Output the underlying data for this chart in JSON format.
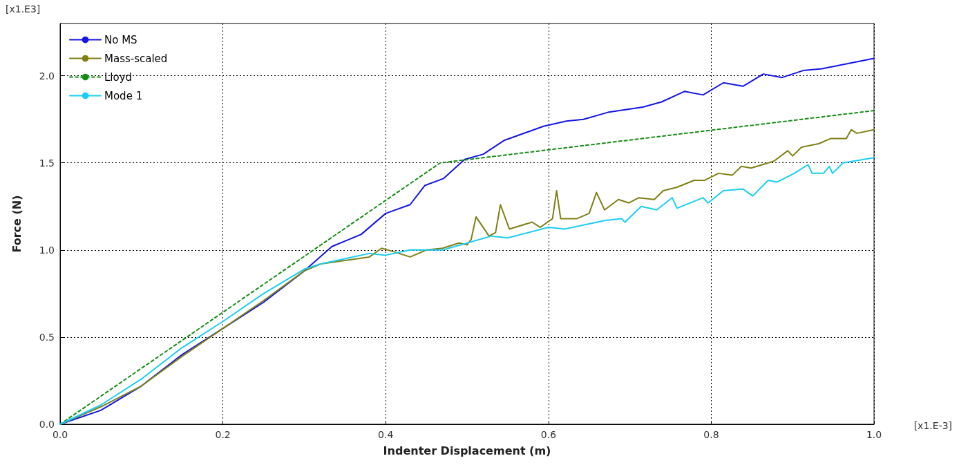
{
  "chart_data": {
    "type": "line",
    "xlabel": "Indenter Displacement (m)",
    "ylabel": "Force (N)",
    "xlim": [
      0,
      1
    ],
    "ylim": [
      0,
      2.3
    ],
    "xticks": [
      {
        "value": 0,
        "label": "0.0"
      },
      0.2,
      0.4,
      0.6,
      0.8,
      {
        "value": 1,
        "label": "1.0"
      }
    ],
    "yticks": [
      {
        "value": 0,
        "label": "0.0"
      },
      0.5,
      {
        "value": 1,
        "label": "1.0"
      },
      1.5,
      {
        "value": 2,
        "label": "2.0"
      }
    ],
    "grid": true,
    "legend": "top left",
    "marker": "none",
    "line_style": "solid",
    "annotations": [
      "[x1.E3]",
      "[x1.E-3]"
    ],
    "series": [
      {
        "name": "No MS",
        "color": "#1414e6",
        "x": [
          0,
          0.05,
          0.1,
          0.15,
          0.2,
          0.25,
          0.3,
          0.334,
          0.37,
          0.4,
          0.43,
          0.448,
          0.471,
          0.497,
          0.52,
          0.546,
          0.594,
          0.622,
          0.643,
          0.673,
          0.716,
          0.739,
          0.767,
          0.79,
          0.815,
          0.839,
          0.864,
          0.887,
          0.913,
          0.936,
          1.0
        ],
        "values": [
          0,
          0.08,
          0.22,
          0.4,
          0.55,
          0.7,
          0.88,
          1.02,
          1.09,
          1.21,
          1.26,
          1.37,
          1.41,
          1.52,
          1.55,
          1.63,
          1.71,
          1.74,
          1.75,
          1.79,
          1.82,
          1.85,
          1.91,
          1.89,
          1.96,
          1.94,
          2.01,
          1.99,
          2.03,
          2.04,
          2.1
        ]
      },
      {
        "name": "Mass-scaled",
        "color": "#7f7f14",
        "x": [
          0,
          0.05,
          0.1,
          0.15,
          0.2,
          0.25,
          0.3,
          0.32,
          0.35,
          0.38,
          0.395,
          0.41,
          0.43,
          0.45,
          0.47,
          0.49,
          0.5,
          0.505,
          0.511,
          0.527,
          0.535,
          0.541,
          0.552,
          0.58,
          0.59,
          0.605,
          0.61,
          0.615,
          0.635,
          0.65,
          0.659,
          0.669,
          0.686,
          0.699,
          0.711,
          0.73,
          0.741,
          0.758,
          0.779,
          0.792,
          0.809,
          0.826,
          0.837,
          0.849,
          0.877,
          0.894,
          0.9,
          0.911,
          0.932,
          0.947,
          0.966,
          0.972,
          0.979,
          1.0
        ],
        "values": [
          0,
          0.1,
          0.22,
          0.39,
          0.55,
          0.71,
          0.88,
          0.92,
          0.94,
          0.96,
          1.01,
          0.99,
          0.96,
          1.0,
          1.01,
          1.04,
          1.03,
          1.06,
          1.19,
          1.08,
          1.1,
          1.26,
          1.12,
          1.16,
          1.13,
          1.18,
          1.34,
          1.18,
          1.18,
          1.21,
          1.33,
          1.23,
          1.29,
          1.27,
          1.3,
          1.29,
          1.34,
          1.36,
          1.4,
          1.4,
          1.44,
          1.43,
          1.48,
          1.47,
          1.51,
          1.57,
          1.54,
          1.59,
          1.61,
          1.64,
          1.64,
          1.69,
          1.67,
          1.69
        ]
      },
      {
        "name": "Lloyd",
        "color": "#148c14",
        "line_style": "dashed",
        "x": [
          0,
          0.467,
          1.0
        ],
        "values": [
          0,
          1.5,
          1.8
        ]
      },
      {
        "name": "Mode 1",
        "color": "#19cdf5",
        "x": [
          0,
          0.05,
          0.1,
          0.15,
          0.2,
          0.25,
          0.3,
          0.32,
          0.35,
          0.38,
          0.4,
          0.43,
          0.47,
          0.5,
          0.53,
          0.55,
          0.6,
          0.62,
          0.65,
          0.67,
          0.69,
          0.694,
          0.714,
          0.733,
          0.752,
          0.758,
          0.79,
          0.796,
          0.815,
          0.839,
          0.851,
          0.87,
          0.881,
          0.902,
          0.919,
          0.924,
          0.938,
          0.945,
          0.949,
          0.962,
          1.0
        ],
        "values": [
          0,
          0.11,
          0.26,
          0.44,
          0.59,
          0.75,
          0.89,
          0.92,
          0.95,
          0.98,
          0.97,
          1.0,
          1.0,
          1.04,
          1.08,
          1.07,
          1.13,
          1.12,
          1.15,
          1.17,
          1.18,
          1.16,
          1.25,
          1.23,
          1.3,
          1.24,
          1.3,
          1.27,
          1.34,
          1.35,
          1.31,
          1.4,
          1.39,
          1.44,
          1.49,
          1.44,
          1.44,
          1.48,
          1.44,
          1.5,
          1.53
        ]
      }
    ]
  }
}
